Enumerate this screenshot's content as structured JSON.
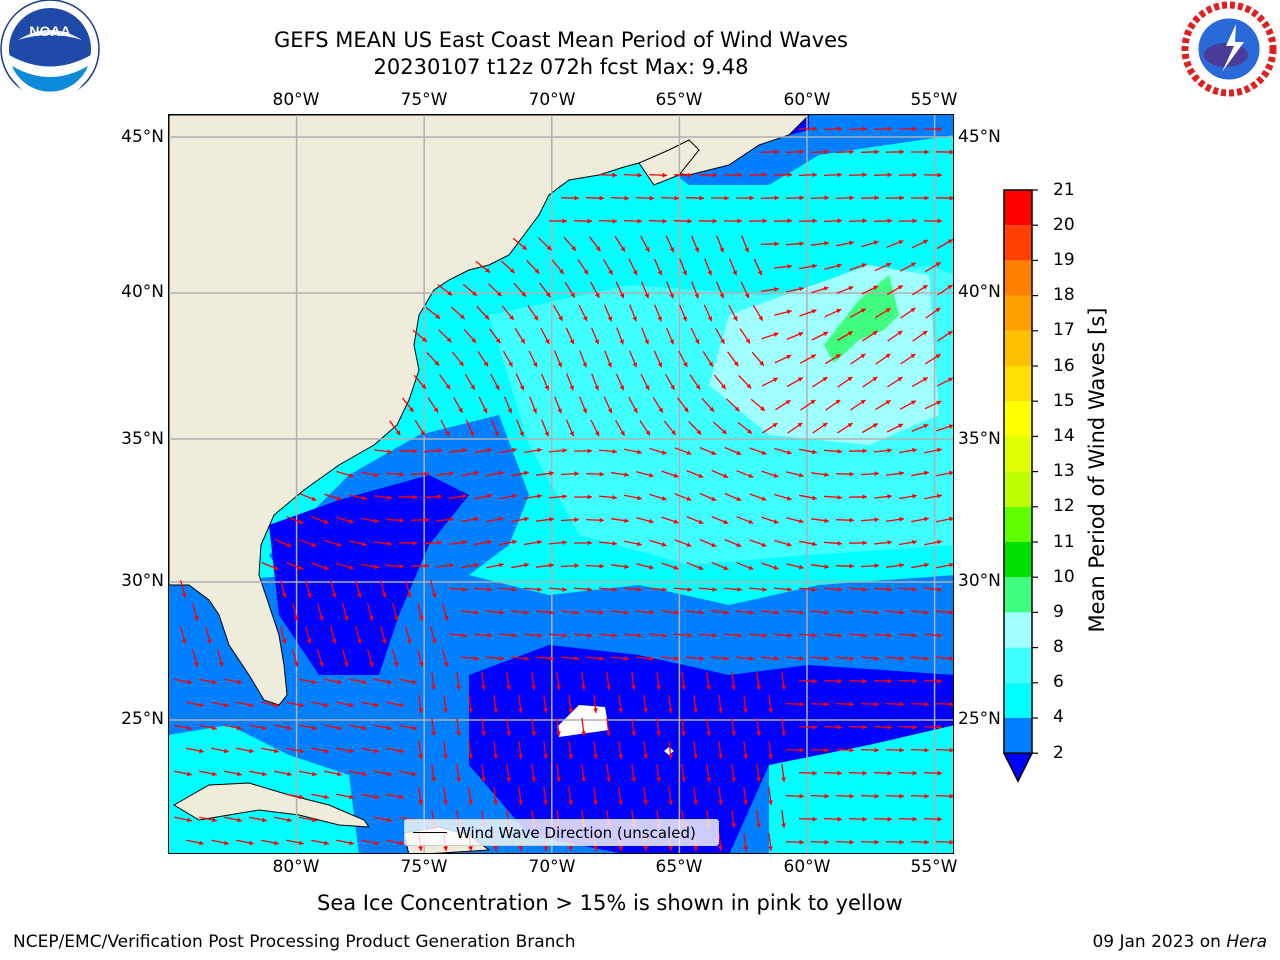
{
  "title": {
    "line1": "GEFS MEAN US East Coast Mean Period of Wind Waves",
    "line2": "20230107 t12z 072h fcst   Max: 9.48"
  },
  "logos": {
    "noaa": {
      "text": "NOAA",
      "ring_text": "NATIONAL OCEANIC AND ATMOSPHERIC ADMINISTRATION · U.S. DEPARTMENT OF COMMERCE"
    },
    "nws": {
      "ring_text": "NATIONAL WEATHER SERVICE"
    }
  },
  "map": {
    "lon_labels": [
      "80°W",
      "75°W",
      "70°W",
      "65°W",
      "60°W",
      "55°W"
    ],
    "lat_labels": [
      "45°N",
      "40°N",
      "35°N",
      "30°N",
      "25°N"
    ],
    "lon_values": [
      -80,
      -75,
      -70,
      -65,
      -60,
      -55
    ],
    "lat_values": [
      45,
      40,
      35,
      30,
      25
    ],
    "extent": {
      "lon_min": -85,
      "lon_max": -54.2,
      "lat_min": 20.5,
      "lat_max": 46
    },
    "land_color": "#efecdc",
    "arrow_color": "#ff0000",
    "grid_color": "#b0b0b0",
    "legend_label": "Wind Wave Direction (unscaled)"
  },
  "colorbar": {
    "label": "Mean Period of Wind Waves [s]",
    "ticks": [
      "21",
      "20",
      "19",
      "18",
      "17",
      "16",
      "15",
      "14",
      "13",
      "12",
      "11",
      "10",
      "9",
      "8",
      "6",
      "4",
      "2"
    ],
    "levels": [
      {
        "from": 2,
        "to": 4,
        "color": "#0080ff"
      },
      {
        "from": 4,
        "to": 6,
        "color": "#00ffff"
      },
      {
        "from": 6,
        "to": 8,
        "color": "#40ffff"
      },
      {
        "from": 8,
        "to": 9,
        "color": "#a0ffff"
      },
      {
        "from": 9,
        "to": 10,
        "color": "#40ff80"
      },
      {
        "from": 10,
        "to": 11,
        "color": "#00e000"
      },
      {
        "from": 11,
        "to": 12,
        "color": "#60ff00"
      },
      {
        "from": 12,
        "to": 13,
        "color": "#c0ff00"
      },
      {
        "from": 13,
        "to": 14,
        "color": "#e0ff00"
      },
      {
        "from": 14,
        "to": 15,
        "color": "#ffff00"
      },
      {
        "from": 15,
        "to": 16,
        "color": "#ffe000"
      },
      {
        "from": 16,
        "to": 17,
        "color": "#ffc000"
      },
      {
        "from": 17,
        "to": 18,
        "color": "#ffa000"
      },
      {
        "from": 18,
        "to": 19,
        "color": "#ff8000"
      },
      {
        "from": 19,
        "to": 20,
        "color": "#ff4000"
      },
      {
        "from": 20,
        "to": 21,
        "color": "#ff0000"
      }
    ],
    "under_color": "#0000ff"
  },
  "ice_note": "Sea Ice Concentration > 15% is shown in pink to yellow",
  "footer": {
    "left": "NCEP/EMC/Verification Post Processing Product Generation Branch",
    "date": "09 Jan 2023 on ",
    "machine": "Hera"
  }
}
